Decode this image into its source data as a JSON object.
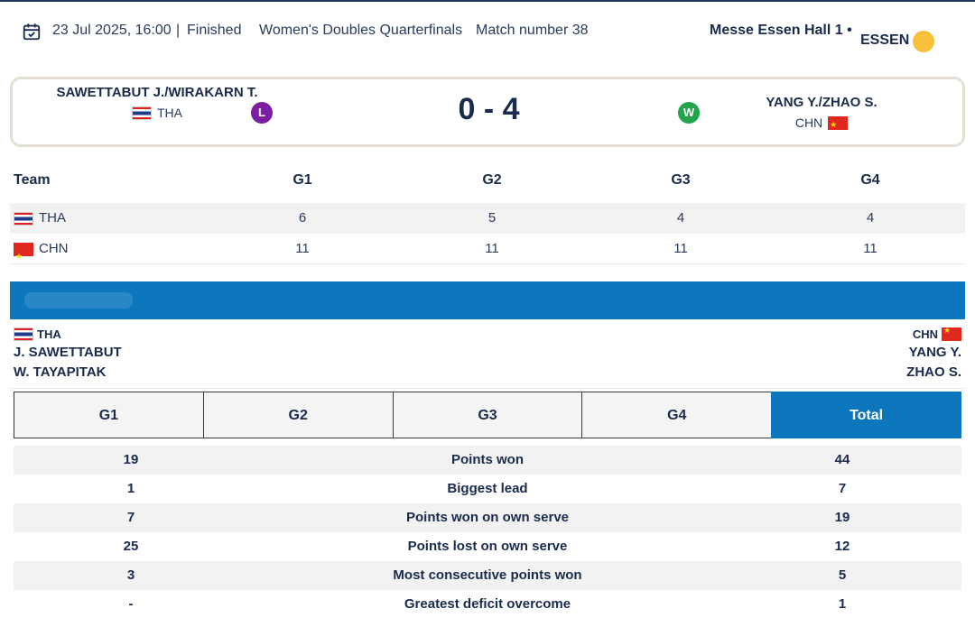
{
  "header": {
    "datetime": "23 Jul 2025, 16:00",
    "separator": "|",
    "status": "Finished",
    "event": "Women's Doubles Quarterfinals",
    "match_number": "Match number 38",
    "venue": "Messe Essen Hall 1 •",
    "city": "ESSEN",
    "icons": {
      "calendar": "calendar-check-icon",
      "weather": "sun-icon"
    }
  },
  "scoreboard": {
    "left_team": {
      "name": "SAWETTABUT J./WIRAKARN T.",
      "country": "THA",
      "result": "L"
    },
    "score": "0 - 4",
    "right_team": {
      "name": "YANG Y./ZHAO S.",
      "country": "CHN",
      "result": "W"
    },
    "colors": {
      "loss": "#7b1fa2",
      "win": "#21a44a"
    }
  },
  "games": {
    "headers": [
      "Team",
      "G1",
      "G2",
      "G3",
      "G4"
    ],
    "rows": [
      {
        "team": "THA",
        "scores": [
          "6",
          "5",
          "4",
          "4"
        ]
      },
      {
        "team": "CHN",
        "scores": [
          "11",
          "11",
          "11",
          "11"
        ]
      }
    ]
  },
  "players": {
    "left": {
      "country": "THA",
      "names": [
        "J. SAWETTABUT",
        "W. TAYAPITAK"
      ]
    },
    "right": {
      "country": "CHN",
      "names": [
        "YANG Y.",
        "ZHAO S."
      ]
    }
  },
  "tabs": {
    "items": [
      "G1",
      "G2",
      "G3",
      "G4",
      "Total"
    ],
    "active": "Total"
  },
  "stats": [
    {
      "left": "19",
      "label": "Points won",
      "right": "44"
    },
    {
      "left": "1",
      "label": "Biggest lead",
      "right": "7"
    },
    {
      "left": "7",
      "label": "Points won on own serve",
      "right": "19"
    },
    {
      "left": "25",
      "label": "Points lost on own serve",
      "right": "12"
    },
    {
      "left": "3",
      "label": "Most consecutive points won",
      "right": "5"
    },
    {
      "left": "-",
      "label": "Greatest deficit overcome",
      "right": "1"
    }
  ],
  "theme": {
    "accent": "#0d77bd",
    "text": "#1a2b4c",
    "weather_dot": "#f6c03a"
  }
}
